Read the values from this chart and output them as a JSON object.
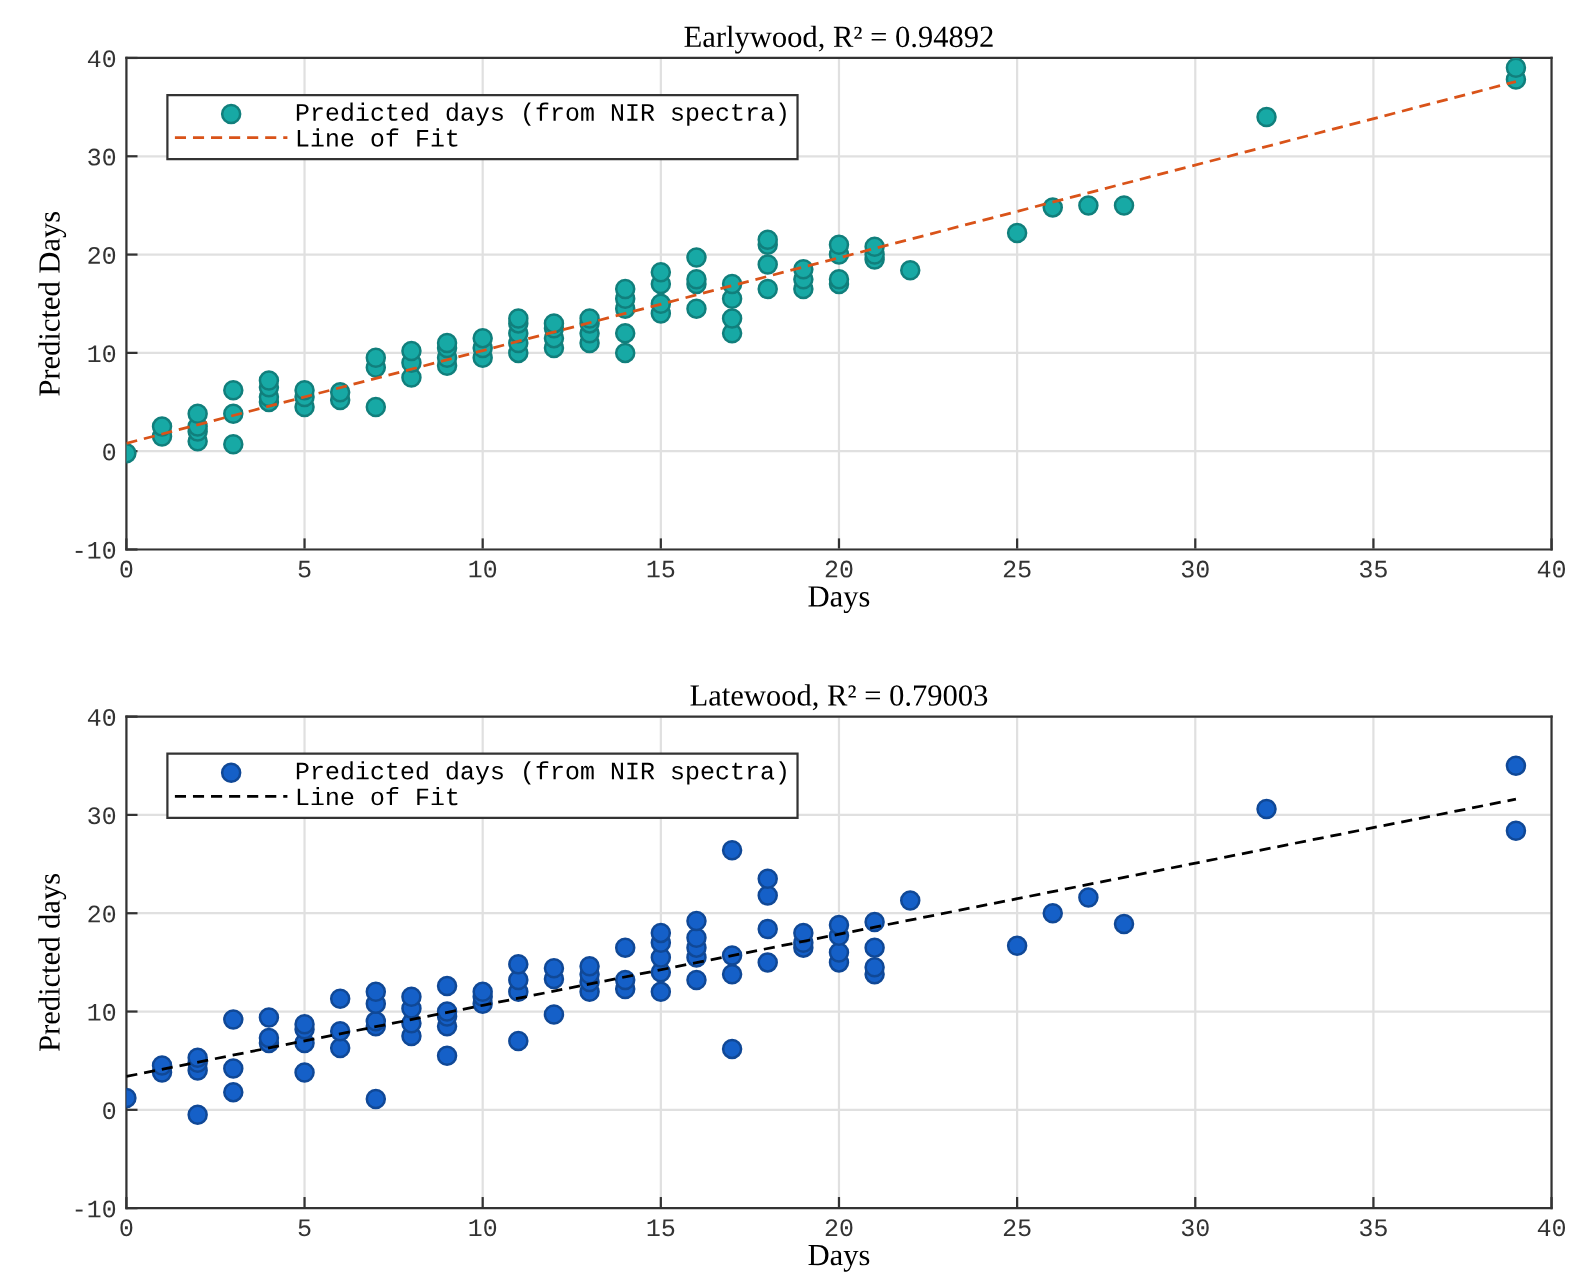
{
  "chart_data": [
    {
      "type": "scatter",
      "title": "Earlywood, R² = 0.94892",
      "xlabel": "Days",
      "ylabel": "Predicted Days",
      "xlim": [
        0,
        40
      ],
      "xticks": [
        0,
        5,
        10,
        15,
        20,
        25,
        30,
        35,
        40
      ],
      "ylim": [
        -10,
        40
      ],
      "yticks": [
        -10,
        0,
        10,
        20,
        30,
        40
      ],
      "grid": true,
      "legend": "top left",
      "series": [
        {
          "name": "Predicted days (from NIR spectra)",
          "marker": "circle",
          "color": "#17a9a5",
          "x": [
            0,
            1,
            1,
            2,
            2,
            2,
            2,
            3,
            3,
            3,
            4,
            4,
            4,
            4,
            5,
            5,
            5,
            6,
            6,
            7,
            7,
            7,
            8,
            8,
            8,
            9,
            9,
            9,
            9,
            10,
            10,
            10,
            11,
            11,
            11,
            11,
            11,
            12,
            12,
            12,
            12,
            13,
            13,
            13,
            13,
            14,
            14,
            14,
            14,
            14,
            15,
            15,
            15,
            15,
            16,
            16,
            16,
            16,
            17,
            17,
            17,
            17,
            18,
            18,
            18,
            18,
            19,
            19,
            19,
            20,
            20,
            20,
            20,
            21,
            21,
            21,
            22,
            25,
            26,
            27,
            28,
            32,
            39,
            39
          ],
          "values": [
            -0.2,
            1.5,
            2.5,
            1,
            2,
            2.5,
            3.8,
            0.7,
            3.8,
            6.2,
            5,
            5.5,
            6.5,
            7.2,
            4.5,
            5.5,
            6.2,
            5.2,
            6,
            4.5,
            8.5,
            9.5,
            7.5,
            9,
            10.2,
            8.7,
            9.5,
            10.5,
            11,
            9.5,
            10.5,
            11.5,
            10,
            11,
            12,
            13,
            13.5,
            10.5,
            11.5,
            12.5,
            13,
            11,
            12,
            13,
            13.5,
            10,
            12,
            14.5,
            15.5,
            16.5,
            14,
            15,
            17,
            18.2,
            14.5,
            17,
            17.5,
            19.7,
            12,
            13.5,
            15.5,
            17,
            16.5,
            19,
            21,
            21.5,
            16.5,
            17.5,
            18.5,
            17,
            17.5,
            20,
            21,
            19.5,
            20,
            20.8,
            18.4,
            22.2,
            24.8,
            25,
            25,
            34,
            37.8,
            39
          ]
        },
        {
          "name": "Line of Fit",
          "type": "line",
          "line_style": "dashed",
          "color": "#d95319",
          "x": [
            0,
            39
          ],
          "values": [
            0.8,
            37.6
          ]
        }
      ]
    },
    {
      "type": "scatter",
      "title": "Latewood, R² = 0.79003",
      "xlabel": "Days",
      "ylabel": "Predicted days",
      "xlim": [
        0,
        40
      ],
      "xticks": [
        0,
        5,
        10,
        15,
        20,
        25,
        30,
        35,
        40
      ],
      "ylim": [
        -10,
        40
      ],
      "yticks": [
        -10,
        0,
        10,
        20,
        30,
        40
      ],
      "grid": true,
      "legend": "top left",
      "series": [
        {
          "name": "Predicted days (from NIR spectra)",
          "marker": "circle",
          "color": "#1560c8",
          "x": [
            0,
            1,
            1,
            2,
            2,
            2,
            2,
            3,
            3,
            3,
            4,
            4,
            4,
            5,
            5,
            5,
            5,
            6,
            6,
            6,
            7,
            7,
            7,
            7,
            7,
            8,
            8,
            8,
            8,
            9,
            9,
            9,
            9,
            9,
            10,
            10,
            10,
            11,
            11,
            11,
            11,
            12,
            12,
            12,
            13,
            13,
            13,
            13,
            14,
            14,
            14,
            15,
            15,
            15,
            15,
            15,
            16,
            16,
            16,
            16,
            16,
            17,
            17,
            17,
            17,
            18,
            18,
            18,
            18,
            19,
            19,
            19,
            20,
            20,
            20,
            20,
            21,
            21,
            21,
            21,
            22,
            25,
            26,
            27,
            28,
            32,
            39,
            39
          ],
          "values": [
            1.2,
            3.8,
            4.5,
            -0.5,
            4,
            4.8,
            5.3,
            1.8,
            4.2,
            9.2,
            6.8,
            7.3,
            9.4,
            3.8,
            6.8,
            8.2,
            8.7,
            6.3,
            8,
            11.3,
            1.1,
            8.5,
            9,
            10.8,
            12,
            7.5,
            8.8,
            10.3,
            11.5,
            5.5,
            8.5,
            9.5,
            10,
            12.6,
            10.8,
            11.5,
            12,
            7,
            12,
            13.2,
            14.8,
            9.7,
            13.3,
            14.4,
            12,
            13,
            13.8,
            14.6,
            12.3,
            13.2,
            16.5,
            12,
            14,
            15.5,
            17,
            18,
            13.2,
            15.5,
            16.5,
            17.5,
            19.2,
            6.2,
            13.8,
            15.7,
            26.4,
            15,
            18.4,
            21.8,
            23.5,
            16.5,
            17,
            18,
            15,
            16,
            17.7,
            18.8,
            13.8,
            14.5,
            16.5,
            19.1,
            21.3,
            16.7,
            20,
            21.6,
            18.9,
            30.6,
            28.4,
            35
          ]
        },
        {
          "name": "Line of Fit",
          "type": "line",
          "line_style": "dashed",
          "color": "#000000",
          "x": [
            0,
            39
          ],
          "values": [
            3.4,
            31.6
          ]
        }
      ]
    }
  ]
}
